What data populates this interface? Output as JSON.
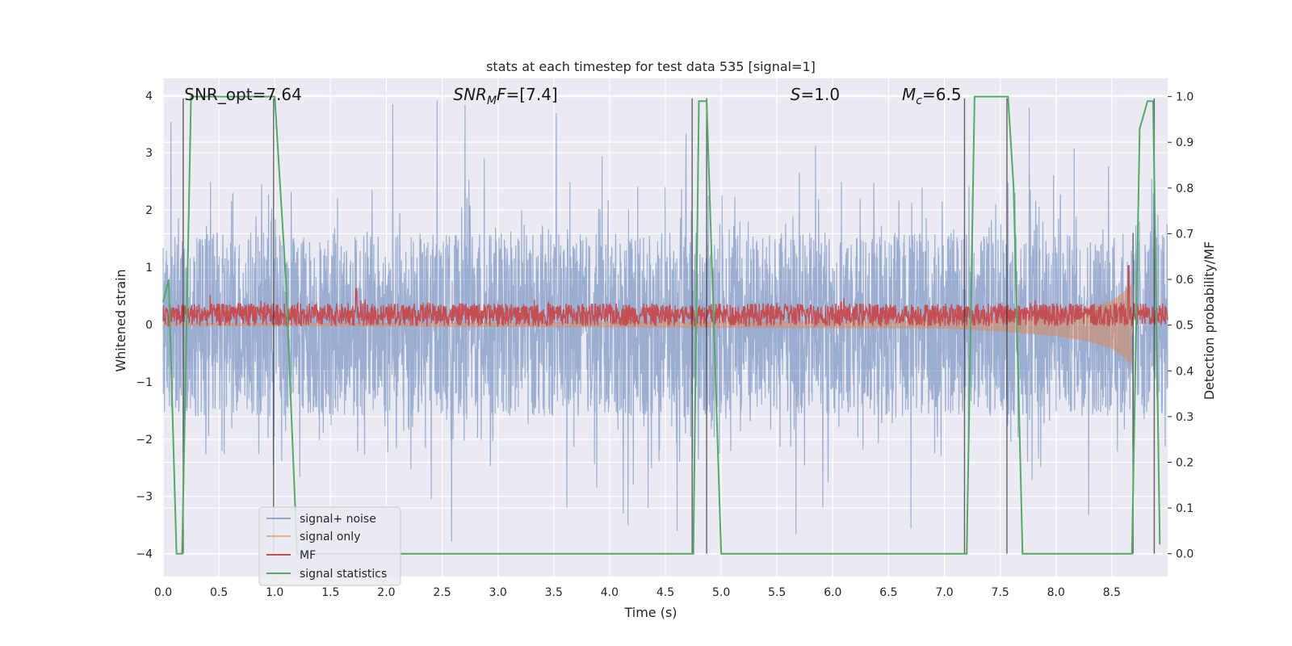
{
  "chart_data": {
    "type": "line",
    "title": "stats at each timestep for test data 535 [signal=1]",
    "xlabel": "Time (s)",
    "ylabel": "Whitened strain",
    "ylabel_right": "Detection probability/MF",
    "xlim": [
      0.0,
      9.0
    ],
    "ylim": [
      -4.4,
      4.3
    ],
    "ylim_right": [
      -0.05,
      1.04
    ],
    "x_ticks": [
      0.0,
      0.5,
      1.0,
      1.5,
      2.0,
      2.5,
      3.0,
      3.5,
      4.0,
      4.5,
      5.0,
      5.5,
      6.0,
      6.5,
      7.0,
      7.5,
      8.0,
      8.5
    ],
    "x_tick_labels": [
      "0.0",
      "0.5",
      "1.0",
      "1.5",
      "2.0",
      "2.5",
      "3.0",
      "3.5",
      "4.0",
      "4.5",
      "5.0",
      "5.5",
      "6.0",
      "6.5",
      "7.0",
      "7.5",
      "8.0",
      "8.5"
    ],
    "y_ticks": [
      -4,
      -3,
      -2,
      -1,
      0,
      1,
      2,
      3,
      4
    ],
    "y_tick_labels": [
      "−4",
      "−3",
      "−2",
      "−1",
      "0",
      "1",
      "2",
      "3",
      "4"
    ],
    "y_right_ticks": [
      0.0,
      0.1,
      0.2,
      0.3,
      0.4,
      0.5,
      0.6,
      0.7,
      0.8,
      0.9,
      1.0
    ],
    "y_right_tick_labels": [
      "0.0",
      "0.1",
      "0.2",
      "0.3",
      "0.4",
      "0.5",
      "0.6",
      "0.7",
      "0.8",
      "0.9",
      "1.0"
    ],
    "grid": true,
    "legend_position": "lower-left",
    "annotations": [
      {
        "text_parts": [
          {
            "t": "SNR_opt=7.64",
            "style": "normal"
          }
        ],
        "x": 0.19
      },
      {
        "text_parts": [
          {
            "t": "SNR",
            "style": "italic"
          },
          {
            "t": "M",
            "style": "italic-sub"
          },
          {
            "t": "F",
            "style": "italic"
          },
          {
            "t": "=[7.4]",
            "style": "normal"
          }
        ],
        "x": 2.6
      },
      {
        "text_parts": [
          {
            "t": "S",
            "style": "italic"
          },
          {
            "t": "=1.0",
            "style": "normal"
          }
        ],
        "x": 5.62
      },
      {
        "text_parts": [
          {
            "t": "M",
            "style": "italic"
          },
          {
            "t": "c",
            "style": "italic-sub"
          },
          {
            "t": "=6.5",
            "style": "normal"
          }
        ],
        "x": 6.62
      }
    ],
    "series": [
      {
        "name": "signal+ noise",
        "color": "#4c72b0",
        "opacity": 0.5,
        "axis": "left",
        "description_stats": {
          "core_amplitude": 1.6,
          "peak_max": 3.95,
          "peak_min": -3.9,
          "samples_per_second": 400,
          "x_range": [
            0.0,
            9.0
          ]
        }
      },
      {
        "name": "signal only",
        "color": "#dd8452",
        "opacity": 0.5,
        "axis": "left",
        "envelope": {
          "t": [
            0.0,
            7.0,
            7.5,
            8.0,
            8.3,
            8.5,
            8.6,
            8.65,
            8.68
          ],
          "amp": [
            0.02,
            0.07,
            0.12,
            0.2,
            0.3,
            0.42,
            0.56,
            0.65,
            0.72
          ]
        }
      },
      {
        "name": "MF",
        "color": "#c44e52",
        "axis": "right",
        "description_stats": {
          "baseline": 0.523,
          "spread": 0.025,
          "spikes": [
            {
              "x": 1.73,
              "y": 0.58
            },
            {
              "x": 8.65,
              "y": 0.63
            }
          ]
        }
      },
      {
        "name": "signal statistics",
        "color": "#55a868",
        "axis": "right",
        "x": [
          0.0,
          0.05,
          0.12,
          0.17,
          0.25,
          1.0,
          1.1,
          1.2,
          4.75,
          4.8,
          4.87,
          5.0,
          7.2,
          7.27,
          7.57,
          7.62,
          7.7,
          8.68,
          8.75,
          8.82,
          8.87,
          8.93
        ],
        "y": [
          0.55,
          0.6,
          0.0,
          0.0,
          1.0,
          1.0,
          0.6,
          0.0,
          0.0,
          0.99,
          0.99,
          0.0,
          0.0,
          1.0,
          1.0,
          0.8,
          0.0,
          0.0,
          0.93,
          0.99,
          0.99,
          0.02
        ]
      }
    ],
    "vertical_markers": {
      "color": "#333333",
      "x": [
        0.18,
        0.99,
        4.74,
        4.87,
        7.18,
        7.56,
        8.69,
        8.88
      ],
      "spans": [
        {
          "x": 0.18,
          "y": [
            -4.0,
            3.95
          ]
        },
        {
          "x": 0.99,
          "y": [
            -4.0,
            3.95
          ]
        },
        {
          "x": 4.74,
          "y": [
            -4.0,
            3.95
          ]
        },
        {
          "x": 4.87,
          "y": [
            -4.0,
            3.95
          ]
        },
        {
          "x": 7.18,
          "y": [
            -4.0,
            3.95
          ]
        },
        {
          "x": 7.56,
          "y": [
            -4.0,
            3.95
          ]
        },
        {
          "x": 8.69,
          "y": [
            -4.0,
            1.6
          ]
        },
        {
          "x": 8.88,
          "y": [
            -4.0,
            3.95
          ]
        }
      ]
    },
    "colors": {
      "plot_bg": "#eaeaf2",
      "grid": "#ffffff"
    }
  }
}
